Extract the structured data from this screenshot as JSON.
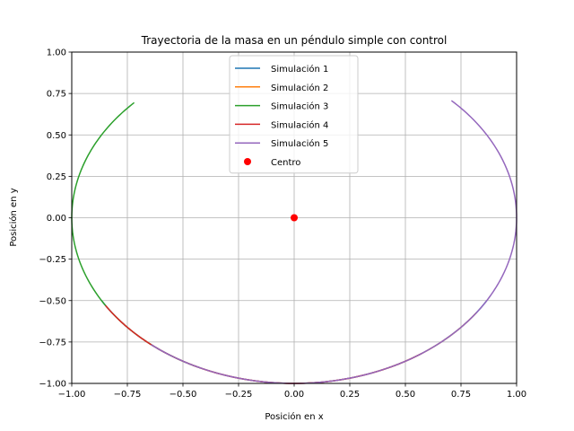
{
  "chart_data": {
    "type": "line",
    "title": "Trayectoria de la masa en un péndulo simple con control",
    "xlabel": "Posición en x",
    "ylabel": "Posición en y",
    "xlim": [
      -1.0,
      1.0
    ],
    "ylim": [
      -1.0,
      1.0
    ],
    "xticks": [
      "−1.00",
      "−0.75",
      "−0.50",
      "−0.25",
      "0.00",
      "0.25",
      "0.50",
      "0.75",
      "1.00"
    ],
    "yticks": [
      "−1.00",
      "−0.75",
      "−0.50",
      "−0.25",
      "0.00",
      "0.25",
      "0.50",
      "0.75",
      "1.00"
    ],
    "grid": true,
    "legend_position": "top-center",
    "series": [
      {
        "name": "Simulación 1",
        "color": "#1f77b4",
        "angle_start_deg": -150,
        "angle_end_deg": -30
      },
      {
        "name": "Simulación 2",
        "color": "#ff7f0e",
        "angle_start_deg": -145,
        "angle_end_deg": -35
      },
      {
        "name": "Simulación 3",
        "color": "#2ca02c",
        "angle_start_deg": 136,
        "angle_end_deg": 245
      },
      {
        "name": "Simulación 4",
        "color": "#d62728",
        "angle_start_deg": -148,
        "angle_end_deg": -55
      },
      {
        "name": "Simulación 5",
        "color": "#9467bd",
        "angle_start_deg": -130,
        "angle_end_deg": 45
      }
    ],
    "center_point": {
      "name": "Centro",
      "x": 0.0,
      "y": 0.0,
      "color": "#ff0000"
    }
  }
}
